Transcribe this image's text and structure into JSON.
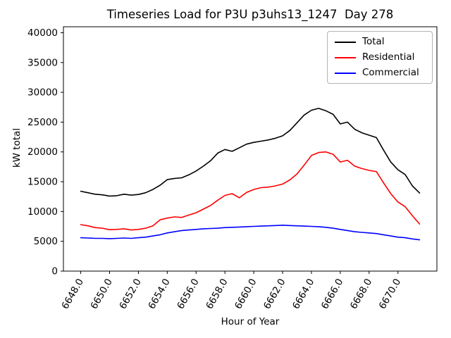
{
  "chart_data": {
    "type": "line",
    "title": "Timeseries Load for P3U p3uhs13_1247  Day 278",
    "xlabel": "Hour of Year",
    "ylabel": "kW total",
    "xlim": [
      6646.8,
      6672.7
    ],
    "ylim": [
      0,
      41000
    ],
    "grid": false,
    "legend_position": "upper right",
    "xticks": [
      6648,
      6650,
      6652,
      6654,
      6656,
      6658,
      6660,
      6662,
      6664,
      6666,
      6668,
      6670
    ],
    "xtick_labels": [
      "6648.0",
      "6650.0",
      "6652.0",
      "6654.0",
      "6656.0",
      "6658.0",
      "6660.0",
      "6662.0",
      "6664.0",
      "6666.0",
      "6668.0",
      "6670.0"
    ],
    "yticks": [
      0,
      5000,
      10000,
      15000,
      20000,
      25000,
      30000,
      35000,
      40000
    ],
    "ytick_labels": [
      "0",
      "5000",
      "10000",
      "15000",
      "20000",
      "25000",
      "30000",
      "35000",
      "40000"
    ],
    "x": [
      6648.0,
      6648.5,
      6649.0,
      6649.5,
      6650.0,
      6650.5,
      6651.0,
      6651.5,
      6652.0,
      6652.5,
      6653.0,
      6653.5,
      6654.0,
      6654.5,
      6655.0,
      6655.5,
      6656.0,
      6656.5,
      6657.0,
      6657.5,
      6658.0,
      6658.5,
      6659.0,
      6659.5,
      6660.0,
      6660.5,
      6661.0,
      6661.5,
      6662.0,
      6662.5,
      6663.0,
      6663.5,
      6664.0,
      6664.5,
      6665.0,
      6665.5,
      6666.0,
      6666.5,
      6667.0,
      6667.5,
      6668.0,
      6668.5,
      6669.0,
      6669.5,
      6670.0,
      6670.5,
      6671.0,
      6671.5
    ],
    "series": [
      {
        "name": "Total",
        "color": "#000000",
        "values": [
          13400,
          13150,
          12900,
          12800,
          12600,
          12650,
          12900,
          12750,
          12850,
          13150,
          13700,
          14400,
          15350,
          15550,
          15650,
          16150,
          16800,
          17600,
          18500,
          19800,
          20400,
          20100,
          20700,
          21300,
          21600,
          21800,
          22000,
          22300,
          22700,
          23600,
          24900,
          26200,
          27000,
          27300,
          26900,
          26300,
          24700,
          25000,
          23800,
          23200,
          22800,
          22400,
          20300,
          18300,
          17000,
          16200,
          14300,
          13100
        ]
      },
      {
        "name": "Residential",
        "color": "#ff0000",
        "values": [
          7800,
          7600,
          7300,
          7200,
          6950,
          7000,
          7100,
          6900,
          7000,
          7200,
          7600,
          8600,
          8900,
          9100,
          9000,
          9400,
          9800,
          10400,
          11000,
          11900,
          12700,
          13000,
          12300,
          13200,
          13700,
          14000,
          14100,
          14300,
          14600,
          15300,
          16300,
          17800,
          19400,
          19900,
          20000,
          19600,
          18300,
          18600,
          17600,
          17200,
          16900,
          16700,
          14800,
          13000,
          11600,
          10800,
          9300,
          7900
        ]
      },
      {
        "name": "Commercial",
        "color": "#0000ff",
        "values": [
          5600,
          5550,
          5500,
          5500,
          5450,
          5500,
          5550,
          5500,
          5600,
          5700,
          5900,
          6100,
          6400,
          6600,
          6800,
          6900,
          7000,
          7100,
          7150,
          7200,
          7300,
          7350,
          7400,
          7450,
          7500,
          7550,
          7600,
          7650,
          7700,
          7650,
          7600,
          7550,
          7500,
          7450,
          7350,
          7200,
          7000,
          6800,
          6600,
          6500,
          6400,
          6300,
          6100,
          5900,
          5700,
          5600,
          5400,
          5250
        ]
      }
    ]
  }
}
